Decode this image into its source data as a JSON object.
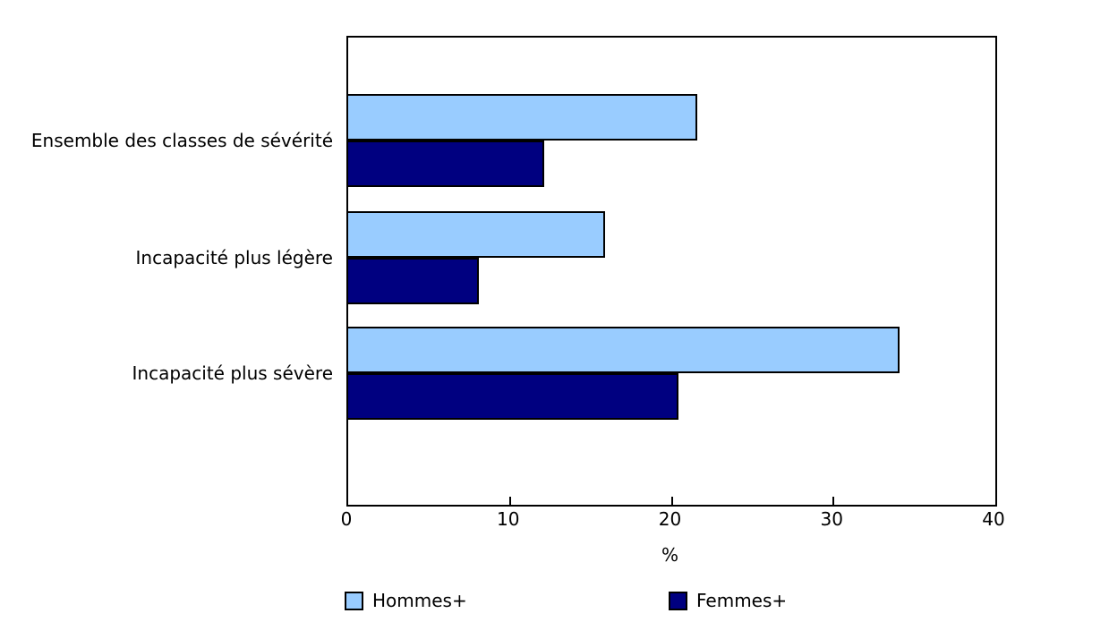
{
  "chart_data": {
    "type": "bar",
    "orientation": "horizontal",
    "title": "",
    "categories": [
      "Ensemble des classes de sévérité",
      "Incapacité plus légère",
      "Incapacité plus sévère"
    ],
    "series": [
      {
        "name": "Hommes+",
        "color": "#99CCFF",
        "values": [
          21.6,
          15.9,
          34.1
        ]
      },
      {
        "name": "Femmes+",
        "color": "#000080",
        "values": [
          12.1,
          8.1,
          20.4
        ]
      }
    ],
    "xlabel": "%",
    "xlim": [
      0,
      40
    ],
    "xticks": [
      "0",
      "10",
      "20",
      "30",
      "40"
    ],
    "grid": false,
    "legend_position": "bottom",
    "bar_border_color": "#000000",
    "axis_color": "#000000"
  }
}
